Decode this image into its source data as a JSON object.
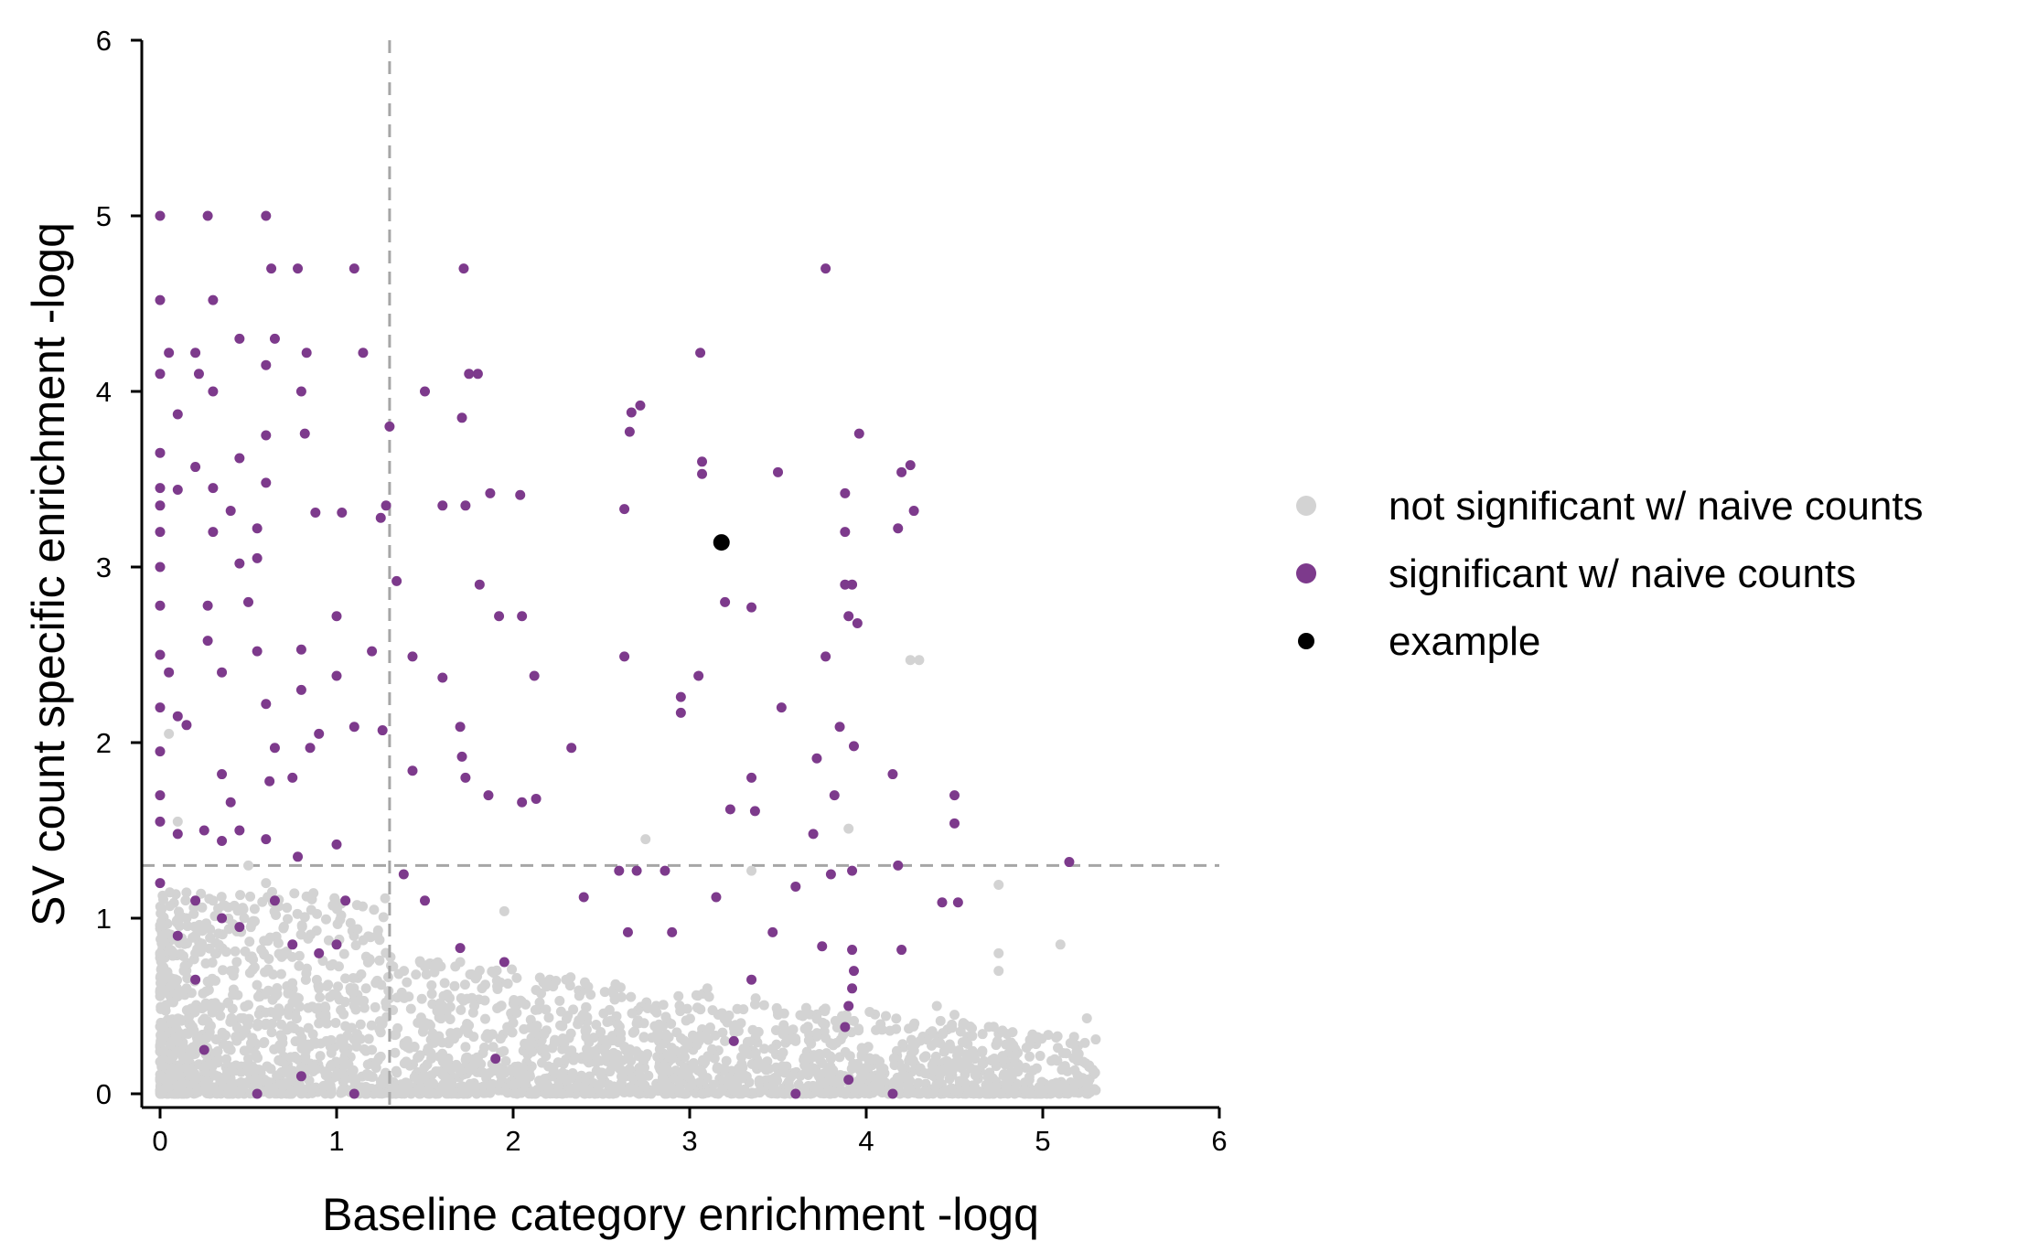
{
  "chart_data": {
    "type": "scatter",
    "title": "",
    "xlabel": "Baseline category enrichment -logq",
    "ylabel": "SV count specific enrichment -logq",
    "xlim": [
      -0.1,
      6
    ],
    "ylim": [
      -0.1,
      6
    ],
    "xticks": [
      "0",
      "1",
      "2",
      "3",
      "4",
      "5",
      "6"
    ],
    "yticks": [
      "0",
      "1",
      "2",
      "3",
      "4",
      "5",
      "6"
    ],
    "grid": false,
    "legend_position": "right",
    "threshold_lines": {
      "x": 1.3,
      "y": 1.3,
      "style": "dashed",
      "color": "#a6a6a6"
    },
    "series": [
      {
        "name": "not significant w/ naive counts",
        "color": "#d3d3d3",
        "points": [
          [
            0.0,
            0.02
          ],
          [
            0.05,
            0.1
          ],
          [
            0.1,
            0.3
          ],
          [
            0.15,
            0.6
          ],
          [
            0.2,
            0.9
          ],
          [
            0.3,
            0.5
          ],
          [
            0.4,
            0.7
          ],
          [
            0.5,
            0.2
          ],
          [
            0.6,
            0.4
          ],
          [
            0.7,
            0.8
          ],
          [
            0.8,
            0.3
          ],
          [
            0.9,
            0.6
          ],
          [
            1.0,
            0.1
          ],
          [
            1.1,
            0.5
          ],
          [
            1.2,
            0.25
          ],
          [
            1.4,
            0.3
          ],
          [
            1.5,
            0.1
          ],
          [
            1.6,
            0.5
          ],
          [
            1.7,
            0.75
          ],
          [
            1.8,
            0.2
          ],
          [
            2.0,
            0.05
          ],
          [
            2.1,
            0.3
          ],
          [
            2.3,
            0.65
          ],
          [
            2.5,
            0.1
          ],
          [
            2.7,
            0.4
          ],
          [
            2.9,
            0.2
          ],
          [
            3.1,
            0.6
          ],
          [
            3.2,
            0.3
          ],
          [
            3.3,
            0.15
          ],
          [
            3.5,
            0.45
          ],
          [
            3.6,
            0.3
          ],
          [
            3.8,
            0.2
          ],
          [
            3.9,
            0.5
          ],
          [
            4.0,
            0.02
          ],
          [
            4.2,
            0.1
          ],
          [
            4.4,
            0.5
          ],
          [
            4.5,
            0.45
          ],
          [
            4.75,
            0.8
          ],
          [
            4.75,
            0.7
          ],
          [
            5.0,
            0.02
          ],
          [
            5.1,
            0.85
          ],
          [
            5.25,
            0.43
          ],
          [
            5.3,
            0.02
          ],
          [
            4.25,
            2.47
          ],
          [
            4.3,
            2.47
          ],
          [
            1.95,
            1.04
          ],
          [
            2.75,
            1.45
          ],
          [
            4.75,
            1.19
          ],
          [
            3.9,
            1.51
          ],
          [
            3.35,
            1.27
          ],
          [
            0.05,
            2.05
          ],
          [
            0.1,
            1.55
          ],
          [
            0.5,
            1.3
          ],
          [
            0.3,
            1.1
          ],
          [
            0.6,
            1.2
          ],
          [
            0.2,
            0.8
          ],
          [
            1.35,
            0.02
          ],
          [
            2.2,
            0.02
          ],
          [
            2.8,
            0.02
          ],
          [
            3.4,
            0.02
          ],
          [
            4.6,
            0.02
          ],
          [
            4.9,
            0.02
          ],
          [
            0.15,
            1.0
          ],
          [
            0.4,
            0.25
          ],
          [
            0.8,
            0.15
          ],
          [
            1.25,
            0.35
          ]
        ]
      },
      {
        "name": "significant w/ naive counts",
        "color": "#7d3a8c",
        "points": [
          [
            0.0,
            5.0
          ],
          [
            0.27,
            5.0
          ],
          [
            0.6,
            5.0
          ],
          [
            0.0,
            4.52
          ],
          [
            0.3,
            4.52
          ],
          [
            0.63,
            4.7
          ],
          [
            0.78,
            4.7
          ],
          [
            1.1,
            4.7
          ],
          [
            1.72,
            4.7
          ],
          [
            3.77,
            4.7
          ],
          [
            0.05,
            4.22
          ],
          [
            0.2,
            4.22
          ],
          [
            0.45,
            4.3
          ],
          [
            0.65,
            4.3
          ],
          [
            0.83,
            4.22
          ],
          [
            1.15,
            4.22
          ],
          [
            3.06,
            4.22
          ],
          [
            0.0,
            4.1
          ],
          [
            0.22,
            4.1
          ],
          [
            0.3,
            4.0
          ],
          [
            0.6,
            4.15
          ],
          [
            0.8,
            4.0
          ],
          [
            1.5,
            4.0
          ],
          [
            1.8,
            4.1
          ],
          [
            1.75,
            4.1
          ],
          [
            0.1,
            3.87
          ],
          [
            1.71,
            3.85
          ],
          [
            2.67,
            3.88
          ],
          [
            2.72,
            3.92
          ],
          [
            0.6,
            3.75
          ],
          [
            0.82,
            3.76
          ],
          [
            1.3,
            3.8
          ],
          [
            2.66,
            3.77
          ],
          [
            3.96,
            3.76
          ],
          [
            0.0,
            3.65
          ],
          [
            0.45,
            3.62
          ],
          [
            0.2,
            3.57
          ],
          [
            3.07,
            3.6
          ],
          [
            4.25,
            3.58
          ],
          [
            4.2,
            3.54
          ],
          [
            3.5,
            3.54
          ],
          [
            0.0,
            3.45
          ],
          [
            0.1,
            3.44
          ],
          [
            0.3,
            3.45
          ],
          [
            0.6,
            3.48
          ],
          [
            3.07,
            3.53
          ],
          [
            3.88,
            3.42
          ],
          [
            0.0,
            3.35
          ],
          [
            0.4,
            3.32
          ],
          [
            0.88,
            3.31
          ],
          [
            1.03,
            3.31
          ],
          [
            1.28,
            3.35
          ],
          [
            1.6,
            3.35
          ],
          [
            1.73,
            3.35
          ],
          [
            1.87,
            3.42
          ],
          [
            2.04,
            3.41
          ],
          [
            2.63,
            3.33
          ],
          [
            4.27,
            3.32
          ],
          [
            0.0,
            3.2
          ],
          [
            0.3,
            3.2
          ],
          [
            0.55,
            3.22
          ],
          [
            1.25,
            3.28
          ],
          [
            4.18,
            3.22
          ],
          [
            3.88,
            3.2
          ],
          [
            0.0,
            3.0
          ],
          [
            0.45,
            3.02
          ],
          [
            0.55,
            3.05
          ],
          [
            1.34,
            2.92
          ],
          [
            1.81,
            2.9
          ],
          [
            3.88,
            2.9
          ],
          [
            3.92,
            2.9
          ],
          [
            0.0,
            2.78
          ],
          [
            0.27,
            2.78
          ],
          [
            0.5,
            2.8
          ],
          [
            1.0,
            2.72
          ],
          [
            1.92,
            2.72
          ],
          [
            2.05,
            2.72
          ],
          [
            3.2,
            2.8
          ],
          [
            3.35,
            2.77
          ],
          [
            3.9,
            2.72
          ],
          [
            3.95,
            2.68
          ],
          [
            0.0,
            2.5
          ],
          [
            0.27,
            2.58
          ],
          [
            0.55,
            2.52
          ],
          [
            0.8,
            2.53
          ],
          [
            1.2,
            2.52
          ],
          [
            1.43,
            2.49
          ],
          [
            2.63,
            2.49
          ],
          [
            3.77,
            2.49
          ],
          [
            0.05,
            2.4
          ],
          [
            0.35,
            2.4
          ],
          [
            0.8,
            2.3
          ],
          [
            1.0,
            2.38
          ],
          [
            1.6,
            2.37
          ],
          [
            2.12,
            2.38
          ],
          [
            3.05,
            2.38
          ],
          [
            0.0,
            2.2
          ],
          [
            0.1,
            2.15
          ],
          [
            0.15,
            2.1
          ],
          [
            0.6,
            2.22
          ],
          [
            0.9,
            2.05
          ],
          [
            1.1,
            2.09
          ],
          [
            1.26,
            2.07
          ],
          [
            1.7,
            2.09
          ],
          [
            2.95,
            2.26
          ],
          [
            3.52,
            2.2
          ],
          [
            3.85,
            2.09
          ],
          [
            0.0,
            1.95
          ],
          [
            0.35,
            1.82
          ],
          [
            0.65,
            1.97
          ],
          [
            0.85,
            1.97
          ],
          [
            1.43,
            1.84
          ],
          [
            1.71,
            1.92
          ],
          [
            2.33,
            1.97
          ],
          [
            2.95,
            2.17
          ],
          [
            3.35,
            1.8
          ],
          [
            3.72,
            1.91
          ],
          [
            3.93,
            1.98
          ],
          [
            4.15,
            1.82
          ],
          [
            0.0,
            1.7
          ],
          [
            0.4,
            1.66
          ],
          [
            0.62,
            1.78
          ],
          [
            0.75,
            1.8
          ],
          [
            1.73,
            1.8
          ],
          [
            1.86,
            1.7
          ],
          [
            2.05,
            1.66
          ],
          [
            2.13,
            1.68
          ],
          [
            3.23,
            1.62
          ],
          [
            3.37,
            1.61
          ],
          [
            3.82,
            1.7
          ],
          [
            4.5,
            1.7
          ],
          [
            4.5,
            1.54
          ],
          [
            0.0,
            1.55
          ],
          [
            0.1,
            1.48
          ],
          [
            0.25,
            1.5
          ],
          [
            0.35,
            1.44
          ],
          [
            0.45,
            1.5
          ],
          [
            0.6,
            1.45
          ],
          [
            0.78,
            1.35
          ],
          [
            1.0,
            1.42
          ],
          [
            3.7,
            1.48
          ],
          [
            4.18,
            1.3
          ],
          [
            5.15,
            1.32
          ],
          [
            0.0,
            1.2
          ],
          [
            0.2,
            1.1
          ],
          [
            0.35,
            1.0
          ],
          [
            0.65,
            1.1
          ],
          [
            0.75,
            0.85
          ],
          [
            1.05,
            1.1
          ],
          [
            1.38,
            1.25
          ],
          [
            1.5,
            1.1
          ],
          [
            2.4,
            1.12
          ],
          [
            2.6,
            1.27
          ],
          [
            2.7,
            1.27
          ],
          [
            2.86,
            1.27
          ],
          [
            3.15,
            1.12
          ],
          [
            3.6,
            1.18
          ],
          [
            3.8,
            1.25
          ],
          [
            3.92,
            1.27
          ],
          [
            4.43,
            1.09
          ],
          [
            4.52,
            1.09
          ],
          [
            0.1,
            0.9
          ],
          [
            0.45,
            0.95
          ],
          [
            0.9,
            0.8
          ],
          [
            1.0,
            0.85
          ],
          [
            1.7,
            0.83
          ],
          [
            1.95,
            0.75
          ],
          [
            2.65,
            0.92
          ],
          [
            2.9,
            0.92
          ],
          [
            3.35,
            0.65
          ],
          [
            3.47,
            0.92
          ],
          [
            3.75,
            0.84
          ],
          [
            3.92,
            0.82
          ],
          [
            3.92,
            0.6
          ],
          [
            3.93,
            0.7
          ],
          [
            4.2,
            0.82
          ],
          [
            0.2,
            0.65
          ],
          [
            3.9,
            0.5
          ],
          [
            3.88,
            0.38
          ],
          [
            1.9,
            0.2
          ],
          [
            3.25,
            0.3
          ],
          [
            0.55,
            0.0
          ],
          [
            1.1,
            0.0
          ],
          [
            0.8,
            0.1
          ],
          [
            3.6,
            0.0
          ],
          [
            3.9,
            0.08
          ],
          [
            4.15,
            0.0
          ],
          [
            0.25,
            0.25
          ]
        ]
      },
      {
        "name": "example",
        "color": "#000000",
        "points": [
          [
            3.18,
            3.14
          ]
        ]
      }
    ]
  }
}
